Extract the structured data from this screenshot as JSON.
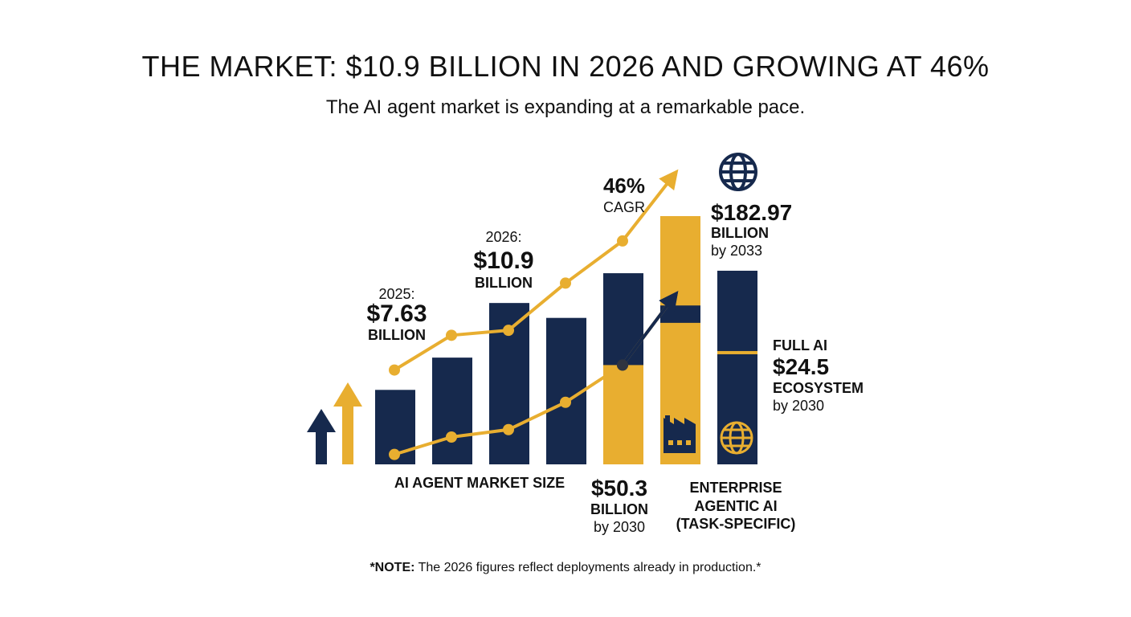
{
  "header": {
    "title": "THE MARKET: $10.9 BILLION IN 2026 AND GROWING AT 46%",
    "subtitle": "The AI agent market is expanding at a remarkable pace."
  },
  "footer": {
    "note_bold": "*NOTE:",
    "note_text": " The 2026 figures reflect deployments already in production.*"
  },
  "colors": {
    "navy": "#16294d",
    "gold": "#e8ae30",
    "dark": "#2f3440"
  },
  "icons": [
    "up-arrow-icon",
    "globe-icon",
    "factory-icon"
  ],
  "chart_data": {
    "type": "bar",
    "title": "THE MARKET: $10.9 BILLION IN 2026 AND GROWING AT 46%",
    "xlabel": "",
    "ylabel": "",
    "grid": false,
    "bars": {
      "values": [
        0.3,
        0.43,
        0.65,
        0.59,
        0.77,
        1.0,
        0.78
      ],
      "gold_fill": [
        0,
        0,
        0,
        0,
        0.4,
        0.57,
        0
      ],
      "gold_cap": [
        0,
        0,
        0,
        0,
        0,
        0.36,
        0
      ],
      "gold_line": [
        0,
        0,
        0,
        0,
        0,
        0,
        0.45
      ]
    },
    "series": [
      {
        "name": "",
        "points": [
          0.38,
          0.52,
          0.54,
          0.73,
          0.9,
          1.17
        ]
      },
      {
        "name": "",
        "points": [
          0.04,
          0.11,
          0.14,
          0.25,
          0.4,
          0.68
        ]
      }
    ],
    "annotations": {
      "y2025": {
        "label": "2025:",
        "value": "$7.63",
        "unit": "BILLION"
      },
      "y2026": {
        "label": "2026:",
        "value": "$10.9",
        "unit": "BILLION"
      },
      "cagr": {
        "value": "46%",
        "label": "CAGR"
      },
      "m2033": {
        "value": "$182.97",
        "unit": "BILLION",
        "date": "by 2033"
      },
      "full_ai": {
        "top": "FULL AI",
        "value": "$24.5",
        "unit": "ECOSYSTEM",
        "date": "by 2030"
      },
      "market_size": {
        "label": "AI AGENT MARKET SIZE"
      },
      "m2030": {
        "value": "$50.3",
        "unit": "BILLION",
        "date": "by 2030"
      },
      "enterprise": {
        "line1": "ENTERPRISE",
        "line2": "AGENTIC AI",
        "line3": "(TASK-SPECIFIC)"
      }
    }
  }
}
